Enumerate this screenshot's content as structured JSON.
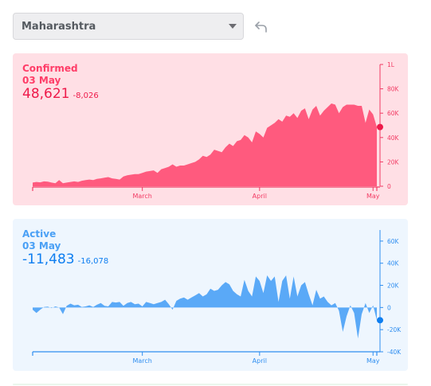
{
  "region_selector": {
    "value": "Maharashtra"
  },
  "confirmed": {
    "title": "Confirmed",
    "date": "03 May",
    "value": "48,621",
    "delta": "-8,026",
    "color": "#ff5a7e"
  },
  "active": {
    "title": "Active",
    "date": "03 May",
    "value": "-11,483",
    "delta": "-16,078",
    "color": "#5aa9f7"
  },
  "chart_data": [
    {
      "type": "area",
      "series_name": "Confirmed",
      "x_tick_labels": [
        "March",
        "April",
        "May"
      ],
      "x_tick_days": [
        30,
        61,
        91
      ],
      "y_tick_labels": [
        "0",
        "20K",
        "40K",
        "60K",
        "80K",
        "1L"
      ],
      "ylim": [
        0,
        100000
      ],
      "x": [
        1,
        2,
        3,
        4,
        5,
        6,
        7,
        8,
        9,
        10,
        11,
        12,
        13,
        14,
        15,
        16,
        17,
        18,
        19,
        20,
        21,
        22,
        23,
        24,
        25,
        26,
        27,
        28,
        29,
        30,
        31,
        32,
        33,
        34,
        35,
        36,
        37,
        38,
        39,
        40,
        41,
        42,
        43,
        44,
        45,
        46,
        47,
        48,
        49,
        50,
        51,
        52,
        53,
        54,
        55,
        56,
        57,
        58,
        59,
        60,
        61,
        62,
        63,
        64,
        65,
        66,
        67,
        68,
        69,
        70,
        71,
        72,
        73,
        74,
        75,
        76,
        77,
        78,
        79,
        80,
        81,
        82,
        83,
        84,
        85,
        86,
        87,
        88,
        89,
        90,
        91,
        92
      ],
      "values": [
        3000,
        3500,
        3200,
        4000,
        3800,
        3000,
        2500,
        5000,
        2500,
        3000,
        3500,
        4000,
        3500,
        4500,
        5000,
        5500,
        5000,
        6000,
        6500,
        7000,
        7500,
        6500,
        6000,
        5500,
        8000,
        9000,
        9500,
        10000,
        10000,
        11000,
        12000,
        12500,
        13000,
        11000,
        14000,
        15000,
        16000,
        18000,
        16000,
        17000,
        17000,
        18000,
        19000,
        20000,
        22000,
        25000,
        24000,
        26000,
        30000,
        29000,
        28000,
        32000,
        35000,
        33000,
        37000,
        38000,
        42000,
        40000,
        36000,
        45000,
        43000,
        40000,
        48000,
        50000,
        52000,
        55000,
        53000,
        58000,
        57000,
        60000,
        56000,
        62000,
        64000,
        55000,
        63000,
        66000,
        58000,
        62000,
        65000,
        68000,
        67000,
        60000,
        65000,
        67000,
        67000,
        67000,
        66000,
        66000,
        52000,
        63000,
        59000,
        48621
      ]
    },
    {
      "type": "area",
      "series_name": "Active",
      "x_tick_labels": [
        "March",
        "April",
        "May"
      ],
      "x_tick_days": [
        30,
        61,
        91
      ],
      "y_tick_labels": [
        "-40K",
        "-20K",
        "0",
        "20K",
        "40K",
        "60K"
      ],
      "ylim": [
        -40000,
        70000
      ],
      "x": [
        1,
        2,
        3,
        4,
        5,
        6,
        7,
        8,
        9,
        10,
        11,
        12,
        13,
        14,
        15,
        16,
        17,
        18,
        19,
        20,
        21,
        22,
        23,
        24,
        25,
        26,
        27,
        28,
        29,
        30,
        31,
        32,
        33,
        34,
        35,
        36,
        37,
        38,
        39,
        40,
        41,
        42,
        43,
        44,
        45,
        46,
        47,
        48,
        49,
        50,
        51,
        52,
        53,
        54,
        55,
        56,
        57,
        58,
        59,
        60,
        61,
        62,
        63,
        64,
        65,
        66,
        67,
        68,
        69,
        70,
        71,
        72,
        73,
        74,
        75,
        76,
        77,
        78,
        79,
        80,
        81,
        82,
        83,
        84,
        85,
        86,
        87,
        88,
        89,
        90,
        91,
        92
      ],
      "values": [
        -2000,
        -5000,
        -2000,
        500,
        800,
        -500,
        1000,
        0,
        -6000,
        1500,
        3500,
        2000,
        2500,
        500,
        1000,
        2000,
        500,
        2500,
        4000,
        1500,
        1000,
        5000,
        4500,
        5000,
        1500,
        4000,
        5000,
        3000,
        3500,
        1000,
        5000,
        4000,
        3000,
        4000,
        5000,
        7000,
        3000,
        -2000,
        6000,
        8000,
        9000,
        7000,
        9000,
        11000,
        13000,
        10000,
        12000,
        17000,
        15000,
        16000,
        20000,
        23000,
        21000,
        15000,
        12000,
        10000,
        25000,
        15000,
        10000,
        28000,
        24000,
        13000,
        29000,
        24000,
        28000,
        5000,
        24000,
        29000,
        8000,
        28000,
        10000,
        20000,
        23000,
        12000,
        2000,
        16000,
        8000,
        10000,
        5000,
        2000,
        4000,
        -3000,
        -22000,
        -8000,
        2000,
        -5000,
        -28000,
        -6000,
        4000,
        -5000,
        2000,
        -11483
      ]
    }
  ]
}
